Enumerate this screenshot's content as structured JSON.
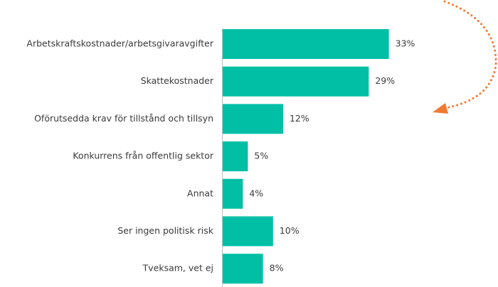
{
  "chart_data": {
    "type": "bar",
    "orientation": "horizontal",
    "categories": [
      "Arbetskraftskostnader/arbetsgivaravgifter",
      "Skattekostnader",
      "Oförutsedda krav för tillstånd och tillsyn",
      "Konkurrens från offentlig sektor",
      "Annat",
      "Ser ingen politisk risk",
      "Tveksam, vet ej"
    ],
    "values": [
      33,
      29,
      12,
      5,
      4,
      10,
      8
    ],
    "value_labels": [
      "33%",
      "29%",
      "12%",
      "5%",
      "4%",
      "10%",
      "8%"
    ],
    "color": "#00bfa5"
  }
}
